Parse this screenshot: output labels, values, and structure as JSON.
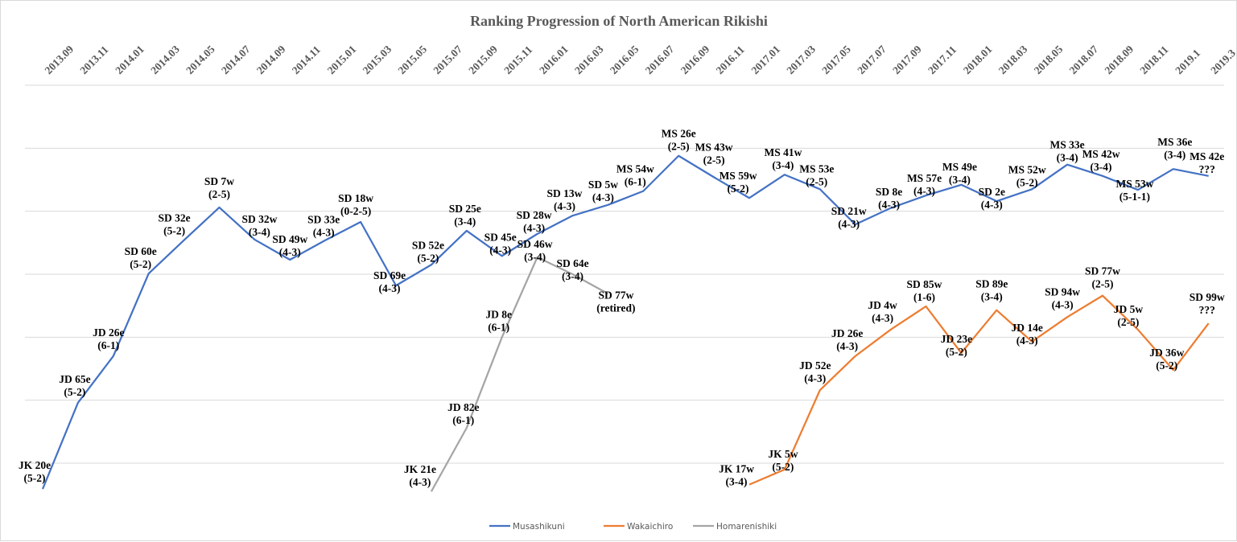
{
  "chart_data": {
    "type": "line",
    "title": "Ranking Progression of North American Rikishi",
    "xlabel": "",
    "ylabel": "",
    "y_axis_note": "No y-axis tick labels shown; values are relative rank height on a unitless scale where horizontal gridlines are at integers 0..6",
    "ylim": [
      -1,
      6
    ],
    "grid": true,
    "legend_position": "bottom",
    "categories": [
      "2013.09",
      "2013.11",
      "2014.01",
      "2014.03",
      "2014.05",
      "2014.07",
      "2014.09",
      "2014.11",
      "2015.01",
      "2015.03",
      "2015.05",
      "2015.07",
      "2015.09",
      "2015.11",
      "2016.01",
      "2016.03",
      "2016.05",
      "2016.07",
      "2016.09",
      "2016.11",
      "2017.01",
      "2017.03",
      "2017.05",
      "2017.07",
      "2017.09",
      "2017.11",
      "2018.01",
      "2018.03",
      "2018.05",
      "2018.07",
      "2018.09",
      "2018.11",
      "2019.1",
      "2019.3"
    ],
    "series": [
      {
        "name": "Musashikuni",
        "color": "#4472c4",
        "start_index": 0,
        "values": [
          -0.41,
          0.96,
          1.7,
          3.01,
          3.54,
          4.06,
          3.55,
          3.23,
          3.54,
          3.83,
          2.82,
          3.15,
          3.69,
          3.29,
          3.64,
          3.93,
          4.1,
          4.32,
          4.88,
          4.54,
          4.21,
          4.58,
          4.35,
          3.79,
          4.05,
          4.25,
          4.42,
          4.16,
          4.35,
          4.74,
          4.56,
          4.34,
          4.67,
          4.56
        ],
        "labels": [
          [
            "JK 20e",
            "(5-2)"
          ],
          [
            "JD 65e",
            "(5-2)"
          ],
          [
            "JD 26e",
            "(6-1)"
          ],
          [
            "SD 60e",
            "(5-2)"
          ],
          [
            "SD 32e",
            "(5-2)"
          ],
          [
            "SD 7w",
            "(2-5)"
          ],
          [
            "SD 32w",
            "(3-4)"
          ],
          [
            "SD 49w",
            "(4-3)"
          ],
          [
            "SD 33e",
            "(4-3)"
          ],
          [
            "SD 18w",
            "(0-2-5)"
          ],
          [
            "SD 69e",
            "(4-3)"
          ],
          [
            "SD 52e",
            "(5-2)"
          ],
          [
            "SD 25e",
            "(3-4)"
          ],
          [
            "SD 45e",
            "(4-3)"
          ],
          [
            "SD 28w",
            "(4-3)"
          ],
          [
            "SD 13w",
            "(4-3)"
          ],
          [
            "SD 5w",
            "(4-3)"
          ],
          [
            "MS 54w",
            "(6-1)"
          ],
          [
            "MS 26e",
            "(2-5)"
          ],
          [
            "MS 43w",
            "(2-5)"
          ],
          [
            "MS 59w",
            "(5-2)"
          ],
          [
            "MS 41w",
            "(3-4)"
          ],
          [
            "MS 53e",
            "(2-5)"
          ],
          [
            "SD 21w",
            "(4-3)"
          ],
          [
            "SD 8e",
            "(4-3)"
          ],
          [
            "MS 57e",
            "(4-3)"
          ],
          [
            "MS 49e",
            "(3-4)"
          ],
          [
            "SD 2e",
            "(4-3)"
          ],
          [
            "MS 52w",
            "(5-2)"
          ],
          [
            "MS 33e",
            "(3-4)"
          ],
          [
            "MS 42w",
            "(3-4)"
          ],
          [
            "MS 53w",
            "(5-1-1)"
          ],
          [
            "MS 36e",
            "(3-4)"
          ],
          [
            "MS 42e",
            "???"
          ]
        ]
      },
      {
        "name": "Wakaichiro",
        "color": "#ed7d31",
        "start_index": 20,
        "values": [
          -0.34,
          -0.1,
          1.16,
          1.7,
          2.12,
          2.49,
          1.75,
          2.43,
          1.93,
          2.32,
          2.66,
          2.12,
          1.48,
          2.22
        ],
        "labels": [
          [
            "JK 17w",
            "(3-4)"
          ],
          [
            "JK 5w",
            "(5-2)"
          ],
          [
            "JD 52e",
            "(4-3)"
          ],
          [
            "JD 26e",
            "(4-3)"
          ],
          [
            "JD 4w",
            "(4-3)"
          ],
          [
            "SD 85w",
            "(1-6)"
          ],
          [
            "JD 23e",
            "(5-2)"
          ],
          [
            "SD 89e",
            "(3-4)"
          ],
          [
            "JD 14e",
            "(4-3)"
          ],
          [
            "SD 94w",
            "(4-3)"
          ],
          [
            "SD 77w",
            "(2-5)"
          ],
          [
            "JD 5w",
            "(2-5)"
          ],
          [
            "JD 36w",
            "(5-2)"
          ],
          [
            "SD 99w",
            "???"
          ]
        ]
      },
      {
        "name": "Homarenishiki",
        "color": "#a5a5a5",
        "start_index": 11,
        "values": [
          -0.45,
          0.56,
          2.0,
          3.27,
          3.0,
          2.69
        ],
        "labels": [
          [
            "JK 21e",
            "(4-3)"
          ],
          [
            "JD 82e",
            "(6-1)"
          ],
          [
            "JD 8e",
            "(6-1)"
          ],
          [
            "SD 46w",
            "(3-4)"
          ],
          [
            "SD 64e",
            "(3-4)"
          ],
          [
            "SD 77w",
            "(retired)"
          ]
        ]
      }
    ]
  }
}
